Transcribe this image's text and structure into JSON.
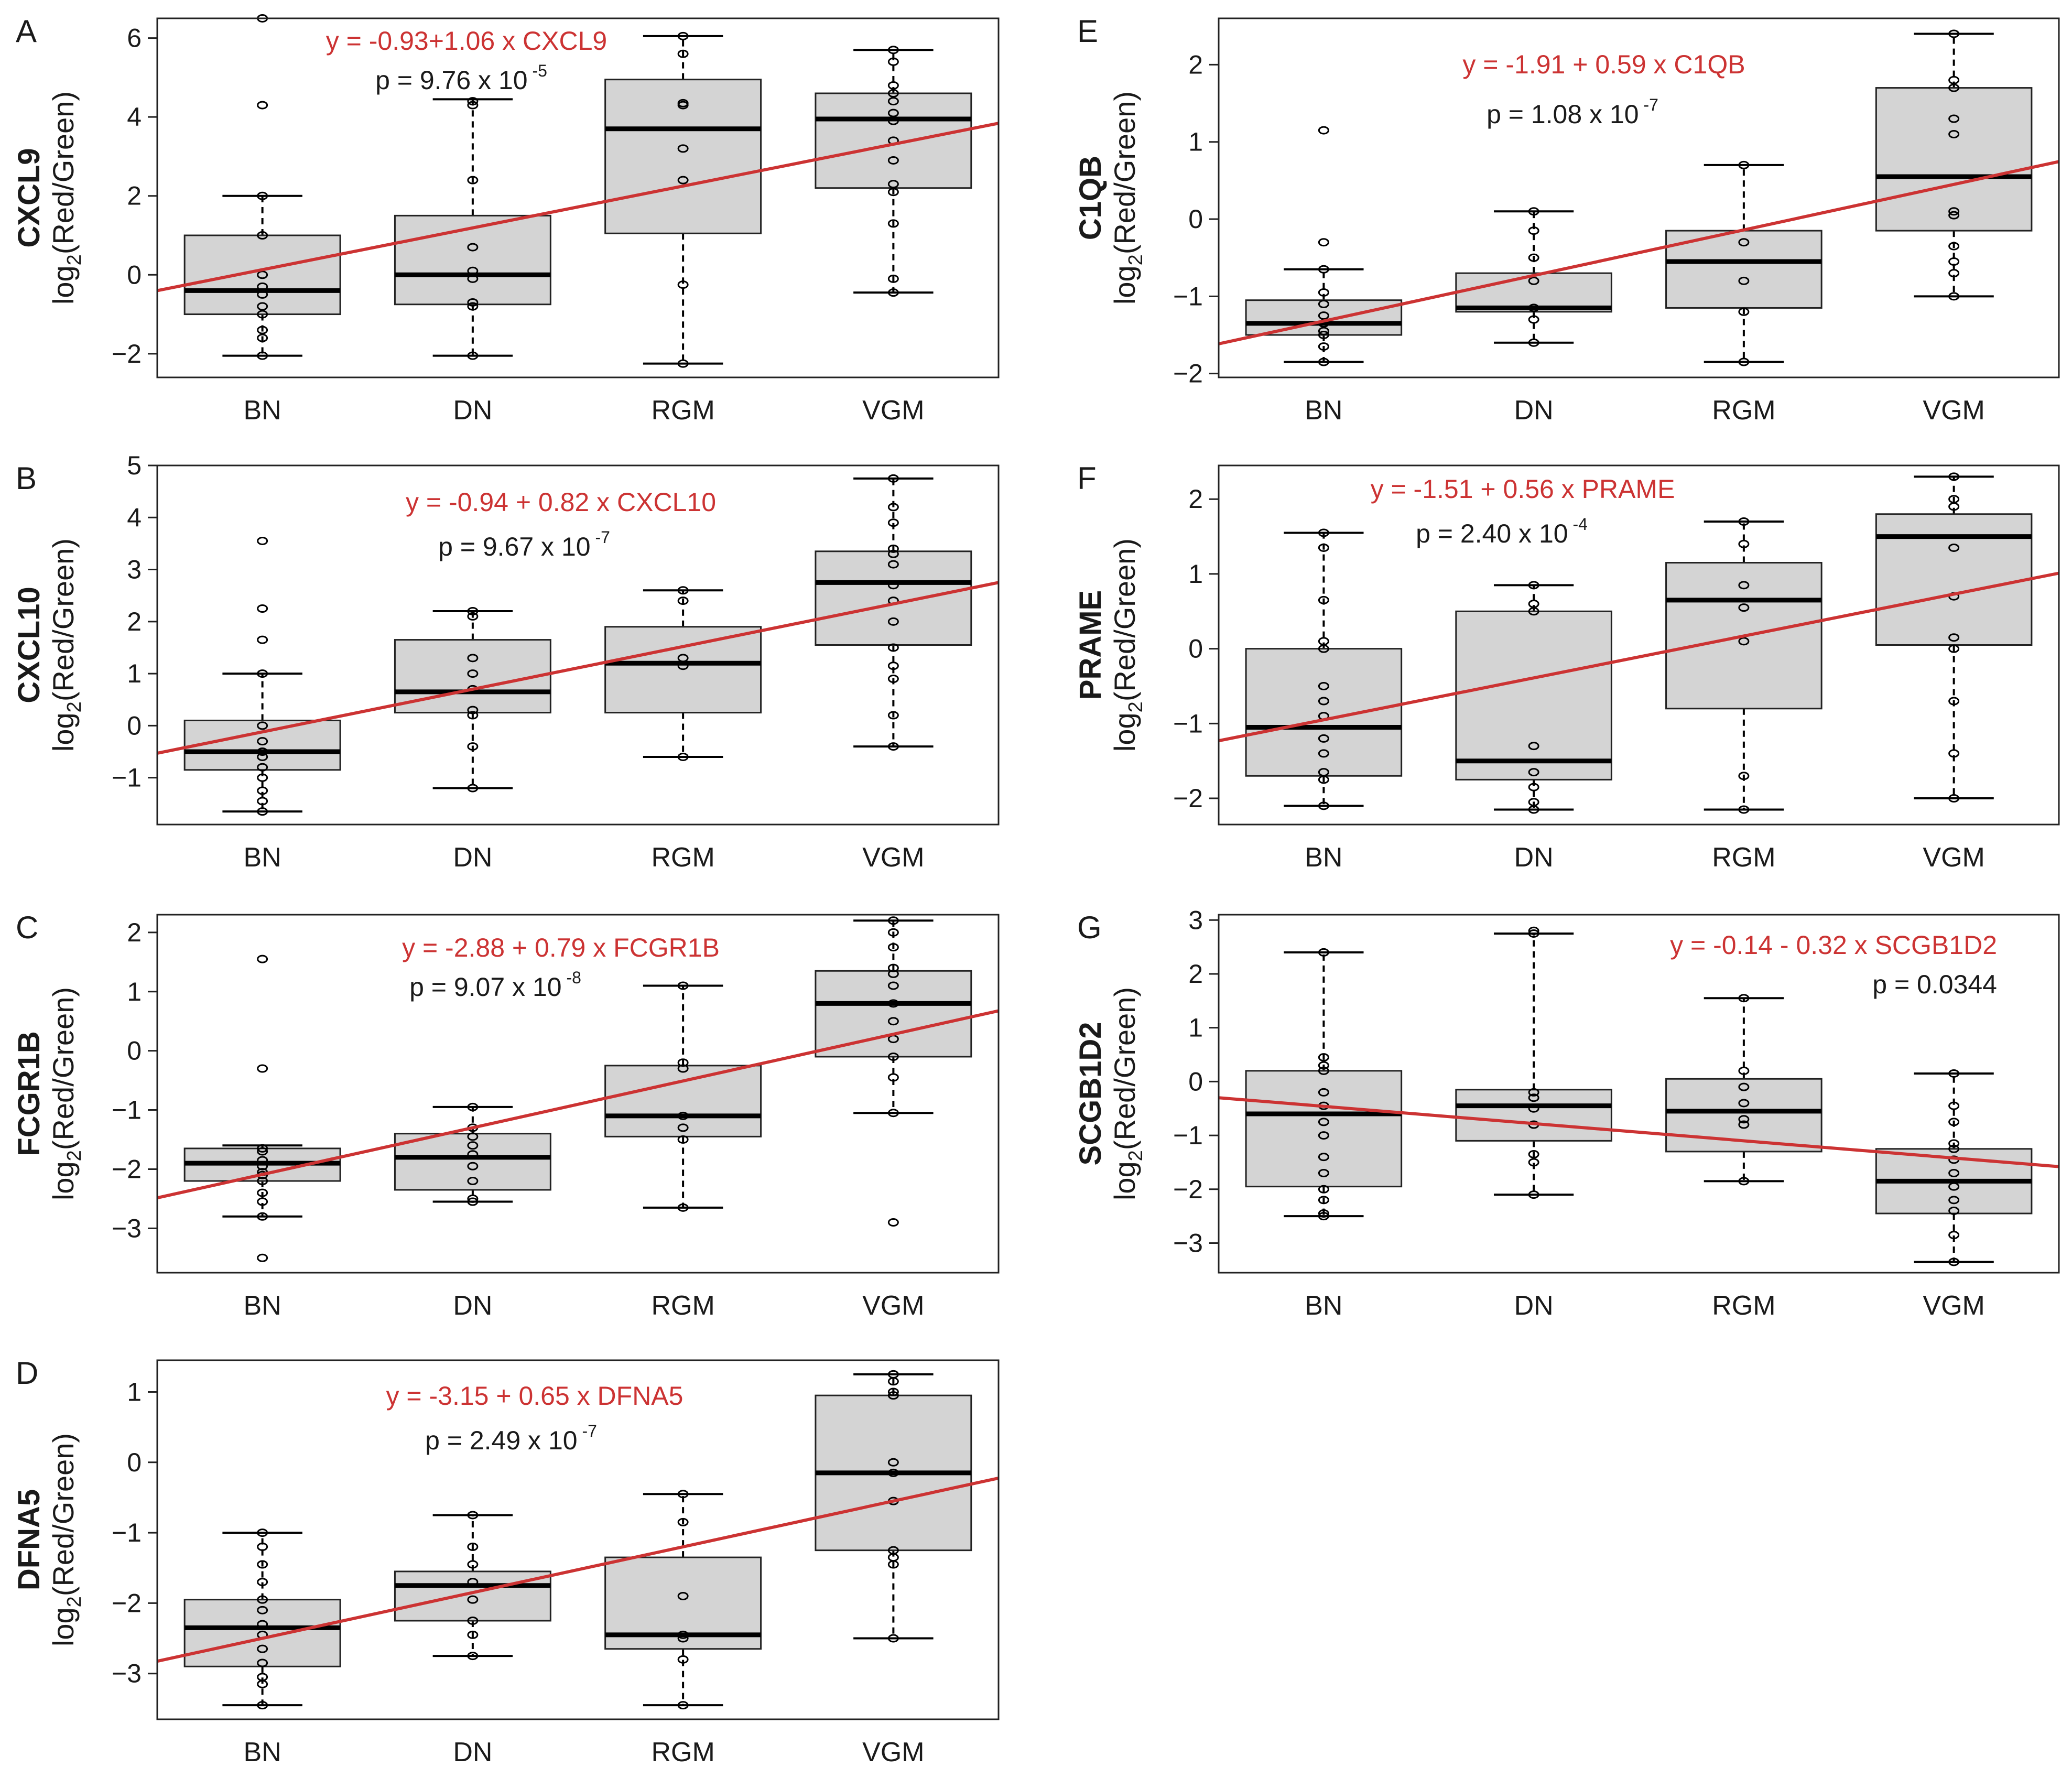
{
  "figure": {
    "ylabel_prefix": "log",
    "ylabel_subscript": "2",
    "ylabel_suffix": "(Red/Green)",
    "colors": {
      "box_fill": "#d4d4d4",
      "regression": "#cc3333",
      "ink": "#1a1a1a"
    }
  },
  "chart_data": [
    {
      "id": "A",
      "type": "boxplot",
      "panel_label": "A",
      "gene": "CXCL9",
      "categories": [
        "BN",
        "DN",
        "RGM",
        "VGM"
      ],
      "ylim": [
        -2.6,
        6.5
      ],
      "yticks": [
        -2,
        0,
        2,
        4,
        6
      ],
      "yticklabels": [
        "−2",
        "0",
        "2",
        "4",
        "6"
      ],
      "boxes": [
        {
          "whislo": -2.05,
          "q1": -1.0,
          "med": -0.4,
          "q3": 1.0,
          "whishi": 2.0
        },
        {
          "whislo": -2.05,
          "q1": -0.75,
          "med": 0.0,
          "q3": 1.5,
          "whishi": 4.45
        },
        {
          "whislo": -2.25,
          "q1": 1.05,
          "med": 3.7,
          "q3": 4.95,
          "whishi": 6.05
        },
        {
          "whislo": -0.45,
          "q1": 2.2,
          "med": 3.95,
          "q3": 4.6,
          "whishi": 5.7
        }
      ],
      "points": [
        [
          6.5,
          4.3,
          2.0,
          1.0,
          0.0,
          -0.3,
          -0.5,
          -0.8,
          -1.0,
          -1.4,
          -1.6,
          -2.05
        ],
        [
          4.4,
          4.3,
          2.4,
          0.7,
          0.1,
          -0.1,
          -0.7,
          -0.8,
          -2.05
        ],
        [
          6.05,
          5.6,
          4.35,
          4.3,
          3.2,
          2.4,
          -0.25,
          -2.25
        ],
        [
          5.7,
          5.4,
          4.8,
          4.6,
          4.4,
          4.1,
          3.9,
          3.4,
          2.9,
          2.3,
          2.1,
          1.3,
          -0.1,
          -0.45
        ]
      ],
      "regression": {
        "intercept": -0.93,
        "slope": 1.06
      },
      "equation": "y = -0.93+1.06 x CXCL9",
      "p_value": {
        "prefix": "p = 9.76 x 10",
        "exp": "-5"
      }
    },
    {
      "id": "B",
      "type": "boxplot",
      "panel_label": "B",
      "gene": "CXCL10",
      "categories": [
        "BN",
        "DN",
        "RGM",
        "VGM"
      ],
      "ylim": [
        -1.9,
        5.0
      ],
      "yticks": [
        -1,
        0,
        1,
        2,
        3,
        4,
        5
      ],
      "yticklabels": [
        "−1",
        "0",
        "1",
        "2",
        "3",
        "4",
        "5"
      ],
      "boxes": [
        {
          "whislo": -1.65,
          "q1": -0.85,
          "med": -0.5,
          "q3": 0.1,
          "whishi": 1.0
        },
        {
          "whislo": -1.2,
          "q1": 0.25,
          "med": 0.65,
          "q3": 1.65,
          "whishi": 2.2
        },
        {
          "whislo": -0.6,
          "q1": 0.25,
          "med": 1.2,
          "q3": 1.9,
          "whishi": 2.6
        },
        {
          "whislo": -0.4,
          "q1": 1.55,
          "med": 2.75,
          "q3": 3.35,
          "whishi": 4.75
        }
      ],
      "points": [
        [
          3.55,
          2.25,
          1.65,
          1.0,
          0.0,
          -0.3,
          -0.5,
          -0.6,
          -0.8,
          -1.0,
          -1.25,
          -1.45,
          -1.65
        ],
        [
          2.2,
          2.1,
          1.3,
          1.0,
          0.7,
          0.3,
          0.2,
          -0.4,
          -1.2
        ],
        [
          2.6,
          2.4,
          1.3,
          1.15,
          -0.6
        ],
        [
          4.75,
          4.2,
          3.9,
          3.4,
          3.3,
          3.1,
          2.7,
          2.4,
          2.0,
          1.5,
          1.15,
          0.9,
          0.2,
          -0.4
        ]
      ],
      "regression": {
        "intercept": -0.94,
        "slope": 0.82
      },
      "equation": "y = -0.94 + 0.82 x CXCL10",
      "p_value": {
        "prefix": "p = 9.67 x 10",
        "exp": "-7"
      }
    },
    {
      "id": "C",
      "type": "boxplot",
      "panel_label": "C",
      "gene": "FCGR1B",
      "categories": [
        "BN",
        "DN",
        "RGM",
        "VGM"
      ],
      "ylim": [
        -3.75,
        2.3
      ],
      "yticks": [
        -3,
        -2,
        -1,
        0,
        1,
        2
      ],
      "yticklabels": [
        "−3",
        "−2",
        "−1",
        "0",
        "1",
        "2"
      ],
      "boxes": [
        {
          "whislo": -2.8,
          "q1": -2.2,
          "med": -1.9,
          "q3": -1.65,
          "whishi": -1.6
        },
        {
          "whislo": -2.55,
          "q1": -2.35,
          "med": -1.8,
          "q3": -1.4,
          "whishi": -0.95
        },
        {
          "whislo": -2.65,
          "q1": -1.45,
          "med": -1.1,
          "q3": -0.25,
          "whishi": 1.1
        },
        {
          "whislo": -1.05,
          "q1": -0.1,
          "med": 0.8,
          "q3": 1.35,
          "whishi": 2.2
        }
      ],
      "points": [
        [
          1.55,
          -0.3,
          -1.65,
          -1.7,
          -1.85,
          -1.95,
          -2.05,
          -2.1,
          -2.2,
          -2.4,
          -2.55,
          -2.8,
          -3.5
        ],
        [
          -0.95,
          -1.3,
          -1.45,
          -1.6,
          -1.75,
          -1.95,
          -2.2,
          -2.5,
          -2.55
        ],
        [
          1.1,
          -0.2,
          -0.3,
          -1.1,
          -1.3,
          -1.5,
          -2.65
        ],
        [
          2.2,
          2.0,
          1.75,
          1.4,
          1.3,
          1.1,
          0.8,
          0.5,
          0.2,
          -0.1,
          -0.45,
          -1.05,
          -2.9
        ]
      ],
      "regression": {
        "intercept": -2.88,
        "slope": 0.79
      },
      "equation": "y = -2.88 + 0.79 x FCGR1B",
      "p_value": {
        "prefix": "p = 9.07 x 10",
        "exp": "-8"
      }
    },
    {
      "id": "D",
      "type": "boxplot",
      "panel_label": "D",
      "gene": "DFNA5",
      "categories": [
        "BN",
        "DN",
        "RGM",
        "VGM"
      ],
      "ylim": [
        -3.65,
        1.45
      ],
      "yticks": [
        -3,
        -2,
        -1,
        0,
        1
      ],
      "yticklabels": [
        "−3",
        "−2",
        "−1",
        "0",
        "1"
      ],
      "boxes": [
        {
          "whislo": -3.45,
          "q1": -2.9,
          "med": -2.35,
          "q3": -1.95,
          "whishi": -1.0
        },
        {
          "whislo": -2.75,
          "q1": -2.25,
          "med": -1.75,
          "q3": -1.55,
          "whishi": -0.75
        },
        {
          "whislo": -3.45,
          "q1": -2.65,
          "med": -2.45,
          "q3": -1.35,
          "whishi": -0.45
        },
        {
          "whislo": -2.5,
          "q1": -1.25,
          "med": -0.15,
          "q3": 0.95,
          "whishi": 1.25
        }
      ],
      "points": [
        [
          -1.0,
          -1.2,
          -1.45,
          -1.7,
          -1.95,
          -2.1,
          -2.3,
          -2.45,
          -2.65,
          -2.85,
          -3.05,
          -3.15,
          -3.45
        ],
        [
          -0.75,
          -1.2,
          -1.45,
          -1.7,
          -1.95,
          -2.25,
          -2.45,
          -2.75
        ],
        [
          -0.45,
          -0.85,
          -1.9,
          -2.45,
          -2.5,
          -2.8,
          -3.45
        ],
        [
          1.25,
          1.15,
          1.0,
          0.95,
          0.0,
          -0.15,
          -0.55,
          -1.25,
          -1.35,
          -1.45,
          -2.5
        ]
      ],
      "regression": {
        "intercept": -3.15,
        "slope": 0.65
      },
      "equation": "y = -3.15 + 0.65 x DFNA5",
      "p_value": {
        "prefix": "p = 2.49 x 10",
        "exp": "-7"
      }
    },
    {
      "id": "E",
      "type": "boxplot",
      "panel_label": "E",
      "gene": "C1QB",
      "categories": [
        "BN",
        "DN",
        "RGM",
        "VGM"
      ],
      "ylim": [
        -2.05,
        2.6
      ],
      "yticks": [
        -2,
        -1,
        0,
        1,
        2
      ],
      "yticklabels": [
        "−2",
        "−1",
        "0",
        "1",
        "2"
      ],
      "boxes": [
        {
          "whislo": -1.85,
          "q1": -1.5,
          "med": -1.35,
          "q3": -1.05,
          "whishi": -0.65
        },
        {
          "whislo": -1.6,
          "q1": -1.2,
          "med": -1.15,
          "q3": -0.7,
          "whishi": 0.1
        },
        {
          "whislo": -1.85,
          "q1": -1.15,
          "med": -0.55,
          "q3": -0.15,
          "whishi": 0.7
        },
        {
          "whislo": -1.0,
          "q1": -0.15,
          "med": 0.55,
          "q3": 1.7,
          "whishi": 2.4
        }
      ],
      "points": [
        [
          1.15,
          -0.3,
          -0.65,
          -0.95,
          -1.1,
          -1.25,
          -1.35,
          -1.45,
          -1.5,
          -1.65,
          -1.85
        ],
        [
          0.1,
          -0.15,
          -0.5,
          -0.8,
          -1.15,
          -1.3,
          -1.6
        ],
        [
          0.7,
          -0.3,
          -0.8,
          -1.2,
          -1.85
        ],
        [
          2.4,
          1.8,
          1.7,
          1.3,
          1.1,
          0.1,
          0.05,
          -0.35,
          -0.55,
          -0.7,
          -1.0
        ]
      ],
      "regression": {
        "intercept": -1.91,
        "slope": 0.59
      },
      "equation": "y = -1.91 + 0.59 x C1QB",
      "p_value": {
        "prefix": "p = 1.08 x 10",
        "exp": "-7"
      }
    },
    {
      "id": "F",
      "type": "boxplot",
      "panel_label": "F",
      "gene": "PRAME",
      "categories": [
        "BN",
        "DN",
        "RGM",
        "VGM"
      ],
      "ylim": [
        -2.35,
        2.45
      ],
      "yticks": [
        -2,
        -1,
        0,
        1,
        2
      ],
      "yticklabels": [
        "−2",
        "−1",
        "0",
        "1",
        "2"
      ],
      "boxes": [
        {
          "whislo": -2.1,
          "q1": -1.7,
          "med": -1.05,
          "q3": 0.0,
          "whishi": 1.55
        },
        {
          "whislo": -2.15,
          "q1": -1.75,
          "med": -1.5,
          "q3": 0.5,
          "whishi": 0.85
        },
        {
          "whislo": -2.15,
          "q1": -0.8,
          "med": 0.65,
          "q3": 1.15,
          "whishi": 1.7
        },
        {
          "whislo": -2.0,
          "q1": 0.05,
          "med": 1.5,
          "q3": 1.8,
          "whishi": 2.3
        }
      ],
      "points": [
        [
          1.55,
          1.35,
          0.65,
          0.1,
          0.0,
          -0.5,
          -0.7,
          -0.9,
          -1.2,
          -1.4,
          -1.65,
          -1.75,
          -2.1
        ],
        [
          0.85,
          0.6,
          0.5,
          -1.3,
          -1.65,
          -1.85,
          -2.05,
          -2.15
        ],
        [
          1.7,
          1.4,
          0.85,
          0.55,
          0.1,
          -1.7,
          -2.15
        ],
        [
          2.3,
          2.0,
          1.9,
          1.35,
          0.7,
          0.15,
          0.0,
          -0.7,
          -1.4,
          -2.0
        ]
      ],
      "regression": {
        "intercept": -1.51,
        "slope": 0.56
      },
      "equation": "y = -1.51 + 0.56 x PRAME",
      "p_value": {
        "prefix": "p = 2.40 x 10",
        "exp": "-4"
      }
    },
    {
      "id": "G",
      "type": "boxplot",
      "panel_label": "G",
      "gene": "SCGB1D2",
      "categories": [
        "BN",
        "DN",
        "RGM",
        "VGM"
      ],
      "ylim": [
        -3.55,
        3.1
      ],
      "yticks": [
        -3,
        -2,
        -1,
        0,
        1,
        2,
        3
      ],
      "yticklabels": [
        "−3",
        "−2",
        "−1",
        "0",
        "1",
        "2",
        "3"
      ],
      "boxes": [
        {
          "whislo": -2.5,
          "q1": -1.95,
          "med": -0.6,
          "q3": 0.2,
          "whishi": 2.4
        },
        {
          "whislo": -2.1,
          "q1": -1.1,
          "med": -0.45,
          "q3": -0.15,
          "whishi": 2.75
        },
        {
          "whislo": -1.85,
          "q1": -1.3,
          "med": -0.55,
          "q3": 0.05,
          "whishi": 1.55
        },
        {
          "whislo": -3.35,
          "q1": -2.45,
          "med": -1.85,
          "q3": -1.25,
          "whishi": 0.15
        }
      ],
      "points": [
        [
          2.4,
          0.45,
          0.3,
          0.2,
          -0.2,
          -0.45,
          -0.75,
          -1.0,
          -1.4,
          -1.7,
          -2.0,
          -2.2,
          -2.45,
          -2.5
        ],
        [
          2.8,
          2.75,
          -0.2,
          -0.3,
          -0.5,
          -0.8,
          -1.35,
          -1.5,
          -2.1
        ],
        [
          1.55,
          0.2,
          -0.1,
          -0.4,
          -0.7,
          -0.8,
          -1.85
        ],
        [
          0.15,
          -0.45,
          -0.75,
          -1.15,
          -1.25,
          -1.45,
          -1.7,
          -1.95,
          -2.2,
          -2.4,
          -2.85,
          -3.35
        ]
      ],
      "regression": {
        "intercept": -0.14,
        "slope": -0.32
      },
      "equation": "y = -0.14 - 0.32 x SCGB1D2",
      "p_value": {
        "prefix": "p = 0.0344",
        "exp": ""
      }
    }
  ]
}
